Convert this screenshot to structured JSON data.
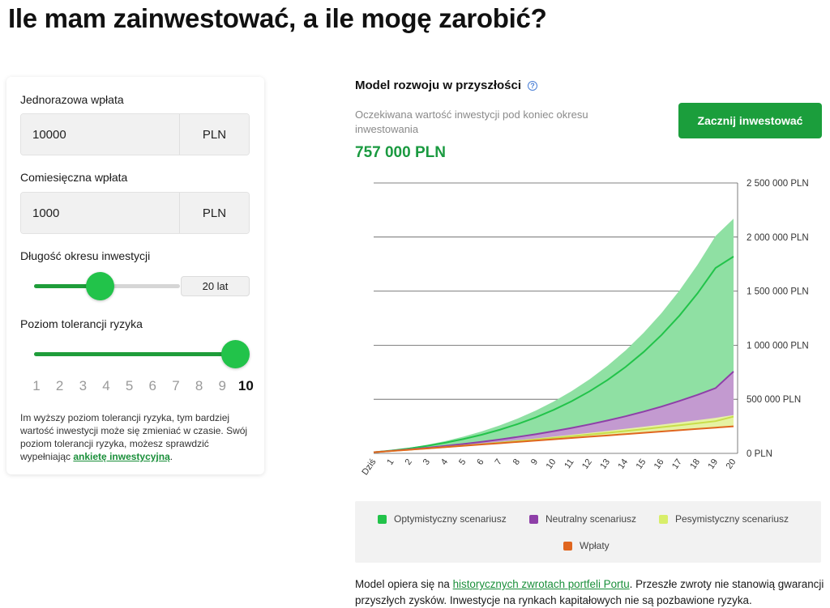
{
  "page": {
    "title": "Ile mam zainwestować, a ile mogę zarobić?"
  },
  "form": {
    "one_time": {
      "label": "Jednorazowa wpłata",
      "value": "10000",
      "unit": "PLN"
    },
    "monthly": {
      "label": "Comiesięczna wpłata",
      "value": "1000",
      "unit": "PLN"
    },
    "duration": {
      "label": "Długość okresu inwestycji",
      "value_label": "20 lat",
      "fraction": 0.44
    },
    "risk": {
      "label": "Poziom tolerancji ryzyka",
      "levels": [
        "1",
        "2",
        "3",
        "4",
        "5",
        "6",
        "7",
        "8",
        "9",
        "10"
      ],
      "selected": 10,
      "fraction": 1.0
    },
    "risk_note": {
      "text": "Im wyższy poziom tolerancji ryzyka, tym bardziej wartość inwestycji może się zmieniać w czasie. Swój poziom tolerancji ryzyka, możesz sprawdzić wypełniając ",
      "link": "ankietę inwestycyjną",
      "end": "."
    }
  },
  "model": {
    "title": "Model rozwoju w przyszłości",
    "help_icon": "question-circle-icon",
    "expect_label": "Oczekiwana wartość inwestycji pod koniec okresu inwestowania",
    "expect_value": "757 000 PLN",
    "cta_label": "Zacznij inwestować"
  },
  "chart_data": {
    "type": "area",
    "x": [
      "Dziś",
      "1",
      "2",
      "3",
      "4",
      "5",
      "6",
      "7",
      "8",
      "9",
      "10",
      "11",
      "12",
      "13",
      "14",
      "15",
      "16",
      "17",
      "18",
      "19",
      "20"
    ],
    "y_ticks": [
      "0 PLN",
      "500 000 PLN",
      "1 000 000 PLN",
      "1 500 000 PLN",
      "2 000 000 PLN",
      "2 500 000 PLN"
    ],
    "y_tick_values": [
      0,
      500000,
      1000000,
      1500000,
      2000000,
      2500000
    ],
    "ylim": [
      0,
      2500000
    ],
    "grid": true,
    "series": [
      {
        "name": "Optymistyczny scenariusz",
        "color": "#22c34a",
        "values": [
          10000,
          26000,
          46000,
          70000,
          99000,
          133000,
          172000,
          218000,
          271000,
          332000,
          402000,
          482000,
          574000,
          679000,
          799000,
          937000,
          1095000,
          1275000,
          1480000,
          1714000,
          1820000
        ]
      },
      {
        "name": "Neutralny scenariusz",
        "color": "#8e3fa8",
        "values": [
          10000,
          23000,
          37000,
          52000,
          69000,
          87000,
          107000,
          128000,
          152000,
          177000,
          205000,
          235000,
          268000,
          304000,
          343000,
          386000,
          433000,
          485000,
          541000,
          603000,
          757000
        ]
      },
      {
        "name": "Pesymistyczny scenariusz",
        "color": "#d8ee6a",
        "values": [
          10000,
          22000,
          34000,
          46000,
          59000,
          72000,
          85000,
          99000,
          113000,
          128000,
          143000,
          158000,
          174000,
          190000,
          207000,
          224000,
          242000,
          260000,
          279000,
          298000,
          340000
        ]
      },
      {
        "name": "Wpłaty",
        "color": "#e0661f",
        "values": [
          10000,
          22000,
          34000,
          46000,
          58000,
          70000,
          82000,
          94000,
          106000,
          118000,
          130000,
          142000,
          154000,
          166000,
          178000,
          190000,
          202000,
          214000,
          226000,
          238000,
          250000
        ]
      }
    ],
    "optimistic_upper": [
      10000,
      28000,
      52000,
      80000,
      114000,
      155000,
      203000,
      258000,
      322000,
      395000,
      479000,
      575000,
      685000,
      810000,
      952000,
      1114000,
      1298000,
      1507000,
      1744000,
      2010000,
      2170000
    ],
    "pessimistic_upper": [
      10000,
      22000,
      35000,
      48000,
      62000,
      76000,
      91000,
      106000,
      122000,
      138000,
      155000,
      172000,
      190000,
      208000,
      227000,
      246000,
      266000,
      286000,
      307000,
      328000,
      355000
    ]
  },
  "legend": [
    {
      "name": "Optymistyczny scenariusz",
      "color": "#22c34a"
    },
    {
      "name": "Neutralny scenariusz",
      "color": "#8e3fa8"
    },
    {
      "name": "Pesymistyczny scenariusz",
      "color": "#d8ee6a"
    },
    {
      "name": "Wpłaty",
      "color": "#e0661f"
    }
  ],
  "disclaimer": {
    "before": "Model opiera się na ",
    "link": "historycznych zwrotach portfeli Portu",
    "after": ". Przeszłe zwroty nie stanowią gwarancji przyszłych zysków. Inwestycje na rynkach kapitałowych nie są pozbawione ryzyka."
  }
}
